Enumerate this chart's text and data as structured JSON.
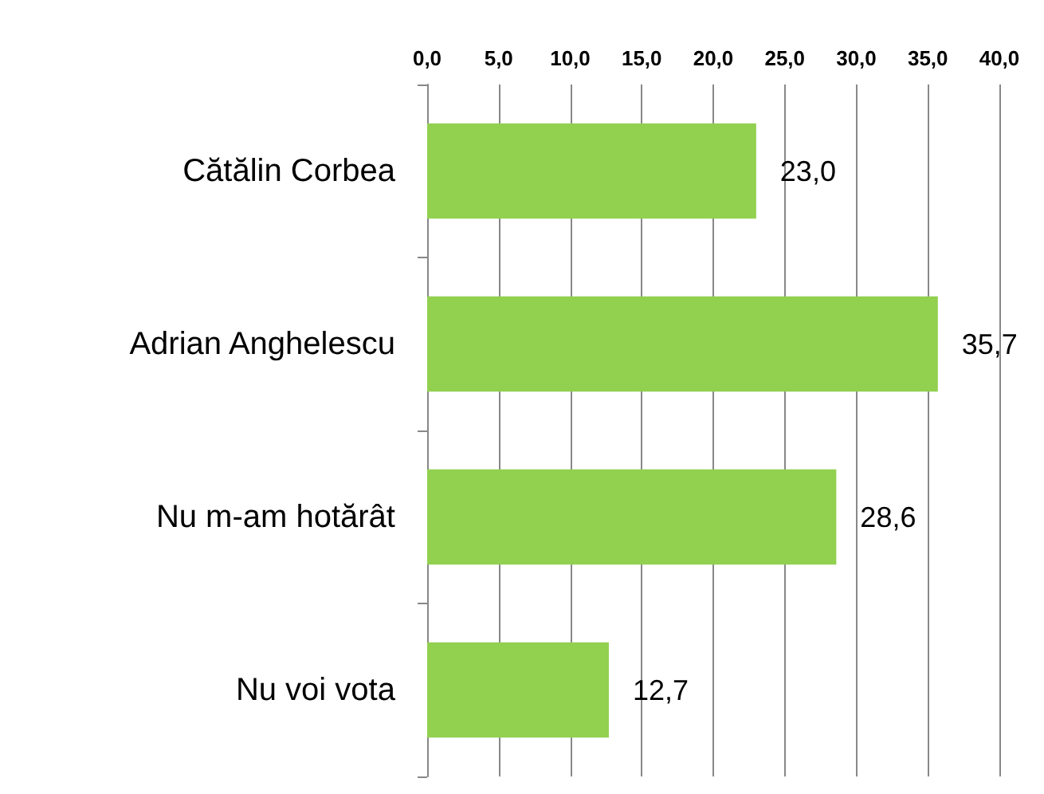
{
  "chart_data": {
    "type": "bar",
    "orientation": "horizontal",
    "categories": [
      "Cătălin Corbea",
      "Adrian Anghelescu",
      "Nu m-am hotărât",
      "Nu voi vota"
    ],
    "values": [
      23.0,
      35.7,
      28.6,
      12.7
    ],
    "value_labels": [
      "23,0",
      "35,7",
      "28,6",
      "12,7"
    ],
    "color": "#92d050",
    "xlim": [
      0,
      40
    ],
    "xticks": [
      {
        "value": 0,
        "label": "0,0"
      },
      {
        "value": 5,
        "label": "5,0"
      },
      {
        "value": 10,
        "label": "10,0"
      },
      {
        "value": 15,
        "label": "15,0"
      },
      {
        "value": 20,
        "label": "20,0"
      },
      {
        "value": 25,
        "label": "25,0"
      },
      {
        "value": 30,
        "label": "30,0"
      },
      {
        "value": 35,
        "label": "35,0"
      },
      {
        "value": 40,
        "label": "40,0"
      }
    ],
    "grid": "x"
  }
}
